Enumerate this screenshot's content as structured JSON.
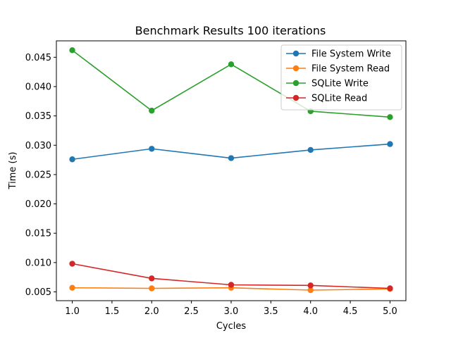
{
  "chart_data": {
    "type": "line",
    "title": "Benchmark Results 100 iterations",
    "xlabel": "Cycles",
    "ylabel": "Time (s)",
    "xlim": [
      0.8,
      5.2
    ],
    "ylim": [
      0.0035,
      0.0478
    ],
    "xticks": [
      1.0,
      1.5,
      2.0,
      2.5,
      3.0,
      3.5,
      4.0,
      4.5,
      5.0
    ],
    "xtick_labels": [
      "1.0",
      "1.5",
      "2.0",
      "2.5",
      "3.0",
      "3.5",
      "4.0",
      "4.5",
      "5.0"
    ],
    "yticks": [
      0.005,
      0.01,
      0.015,
      0.02,
      0.025,
      0.03,
      0.035,
      0.04,
      0.045
    ],
    "ytick_labels": [
      "0.005",
      "0.010",
      "0.015",
      "0.020",
      "0.025",
      "0.030",
      "0.035",
      "0.040",
      "0.045"
    ],
    "grid": false,
    "legend_position": "top-right",
    "x": [
      1,
      2,
      3,
      4,
      5
    ],
    "series": [
      {
        "name": "File System Write",
        "color": "#1f77b4",
        "values": [
          0.0276,
          0.0294,
          0.0278,
          0.0292,
          0.0302
        ]
      },
      {
        "name": "File System Read",
        "color": "#ff7f0e",
        "values": [
          0.0057,
          0.0056,
          0.0057,
          0.0053,
          0.0055
        ]
      },
      {
        "name": "SQLite Write",
        "color": "#2ca02c",
        "values": [
          0.0462,
          0.0359,
          0.0438,
          0.0358,
          0.0348
        ]
      },
      {
        "name": "SQLite Read",
        "color": "#d62728",
        "values": [
          0.0098,
          0.0073,
          0.0062,
          0.0061,
          0.0056
        ]
      }
    ]
  }
}
